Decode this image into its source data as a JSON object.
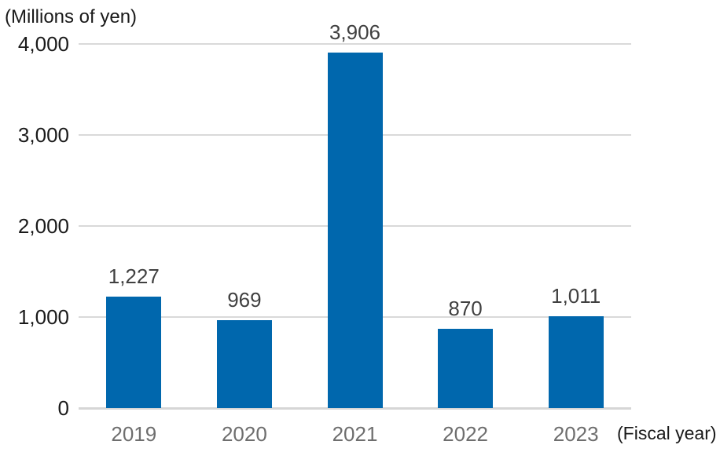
{
  "chart_data": {
    "type": "bar",
    "title": "",
    "unit_label": "(Millions of yen)",
    "axis_note": "(Fiscal year)",
    "categories": [
      "2019",
      "2020",
      "2021",
      "2022",
      "2023"
    ],
    "values": [
      1227,
      969,
      3906,
      870,
      1011
    ],
    "value_labels": [
      "1,227",
      "969",
      "3,906",
      "870",
      "1,011"
    ],
    "y_ticks": [
      0,
      1000,
      2000,
      3000,
      4000
    ],
    "y_tick_labels": [
      "0",
      "1,000",
      "2,000",
      "3,000",
      "4,000"
    ],
    "ylim": [
      0,
      4000
    ],
    "grid": true,
    "legend": false,
    "colors": {
      "bar": "#0067AD",
      "gridline": "#d9d9d9",
      "axis_line": "#d6d6d6",
      "value_label": "#404040",
      "y_tick_label": "#1a1a1a",
      "category_label": "#6e6e6e",
      "note": "#1a1a1a"
    }
  }
}
